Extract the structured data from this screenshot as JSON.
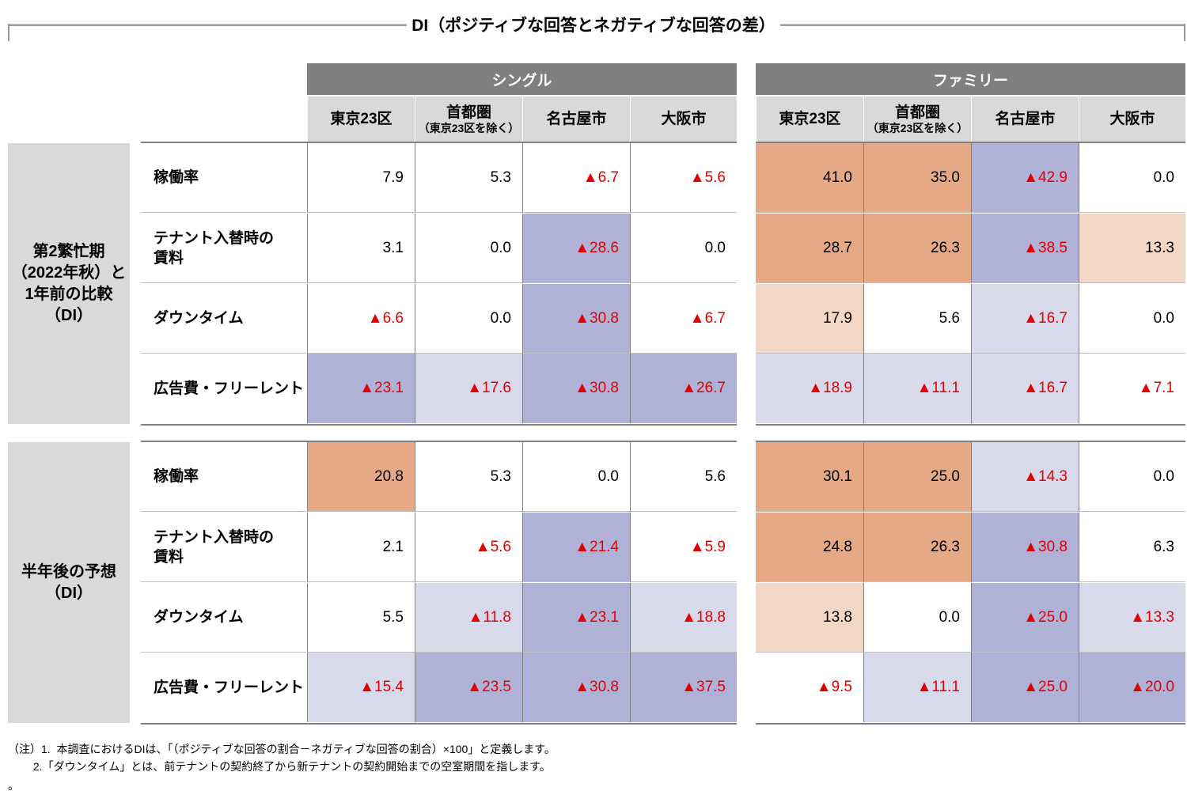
{
  "title": "DI（ポジティブな回答とネガティブな回答の差）",
  "groups": [
    {
      "label": "シングル"
    },
    {
      "label": "ファミリー"
    }
  ],
  "columns": [
    {
      "main": "東京23区",
      "sub": ""
    },
    {
      "main": "首都圏",
      "sub": "（東京23区を除く）"
    },
    {
      "main": "名古屋市",
      "sub": ""
    },
    {
      "main": "大阪市",
      "sub": ""
    }
  ],
  "sections": [
    {
      "label": "第2繁忙期\n（2022年秋）と\n1年前の比較\n（DI）"
    },
    {
      "label": "半年後の予想\n（DI）"
    }
  ],
  "row_labels": [
    "稼働率",
    "テナント入替時の\n賃料",
    "ダウンタイム",
    "広告費・フリーレント"
  ],
  "neg_marker": "▲",
  "colors": {
    "header_gray": "#7f7f7f",
    "strong_positive": "#e5a985",
    "mild_positive": "#f2d6c6",
    "strong_negative": "#afb1d6",
    "mild_negative": "#d9d9ec",
    "negative_text": "#e00000"
  },
  "chart_data": {
    "type": "table",
    "title": "DI（ポジティブな回答とネガティブな回答の差）",
    "groups": [
      "シングル",
      "ファミリー"
    ],
    "columns": [
      "東京23区",
      "首都圏（東京23区を除く）",
      "名古屋市",
      "大阪市"
    ],
    "rows": [
      "稼働率",
      "テナント入替時の賃料",
      "ダウンタイム",
      "広告費・フリーレント"
    ],
    "sections": [
      {
        "name": "第2繁忙期（2022年秋）と1年前の比較（DI）",
        "シングル": [
          [
            {
              "v": "7.9",
              "neg": false,
              "s": 0
            },
            {
              "v": "5.3",
              "neg": false,
              "s": 0
            },
            {
              "v": "6.7",
              "neg": true,
              "s": 0
            },
            {
              "v": "5.6",
              "neg": true,
              "s": 0
            }
          ],
          [
            {
              "v": "3.1",
              "neg": false,
              "s": 0
            },
            {
              "v": "0.0",
              "neg": false,
              "s": 0
            },
            {
              "v": "28.6",
              "neg": true,
              "s": 3
            },
            {
              "v": "0.0",
              "neg": false,
              "s": 0
            }
          ],
          [
            {
              "v": "6.6",
              "neg": true,
              "s": 0
            },
            {
              "v": "0.0",
              "neg": false,
              "s": 0
            },
            {
              "v": "30.8",
              "neg": true,
              "s": 3
            },
            {
              "v": "6.7",
              "neg": true,
              "s": 0
            }
          ],
          [
            {
              "v": "23.1",
              "neg": true,
              "s": 3
            },
            {
              "v": "17.6",
              "neg": true,
              "s": 4
            },
            {
              "v": "30.8",
              "neg": true,
              "s": 3
            },
            {
              "v": "26.7",
              "neg": true,
              "s": 3
            }
          ]
        ],
        "ファミリー": [
          [
            {
              "v": "41.0",
              "neg": false,
              "s": 1
            },
            {
              "v": "35.0",
              "neg": false,
              "s": 1
            },
            {
              "v": "42.9",
              "neg": true,
              "s": 3
            },
            {
              "v": "0.0",
              "neg": false,
              "s": 0
            }
          ],
          [
            {
              "v": "28.7",
              "neg": false,
              "s": 1
            },
            {
              "v": "26.3",
              "neg": false,
              "s": 1
            },
            {
              "v": "38.5",
              "neg": true,
              "s": 3
            },
            {
              "v": "13.3",
              "neg": false,
              "s": 2
            }
          ],
          [
            {
              "v": "17.9",
              "neg": false,
              "s": 2
            },
            {
              "v": "5.6",
              "neg": false,
              "s": 0
            },
            {
              "v": "16.7",
              "neg": true,
              "s": 4
            },
            {
              "v": "0.0",
              "neg": false,
              "s": 0
            }
          ],
          [
            {
              "v": "18.9",
              "neg": true,
              "s": 4
            },
            {
              "v": "11.1",
              "neg": true,
              "s": 4
            },
            {
              "v": "16.7",
              "neg": true,
              "s": 4
            },
            {
              "v": "7.1",
              "neg": true,
              "s": 0
            }
          ]
        ]
      },
      {
        "name": "半年後の予想（DI）",
        "シングル": [
          [
            {
              "v": "20.8",
              "neg": false,
              "s": 1
            },
            {
              "v": "5.3",
              "neg": false,
              "s": 0
            },
            {
              "v": "0.0",
              "neg": false,
              "s": 0
            },
            {
              "v": "5.6",
              "neg": false,
              "s": 0
            }
          ],
          [
            {
              "v": "2.1",
              "neg": false,
              "s": 0
            },
            {
              "v": "5.6",
              "neg": true,
              "s": 0
            },
            {
              "v": "21.4",
              "neg": true,
              "s": 3
            },
            {
              "v": "5.9",
              "neg": true,
              "s": 0
            }
          ],
          [
            {
              "v": "5.5",
              "neg": false,
              "s": 0
            },
            {
              "v": "11.8",
              "neg": true,
              "s": 4
            },
            {
              "v": "23.1",
              "neg": true,
              "s": 3
            },
            {
              "v": "18.8",
              "neg": true,
              "s": 4
            }
          ],
          [
            {
              "v": "15.4",
              "neg": true,
              "s": 4
            },
            {
              "v": "23.5",
              "neg": true,
              "s": 3
            },
            {
              "v": "30.8",
              "neg": true,
              "s": 3
            },
            {
              "v": "37.5",
              "neg": true,
              "s": 3
            }
          ]
        ],
        "ファミリー": [
          [
            {
              "v": "30.1",
              "neg": false,
              "s": 1
            },
            {
              "v": "25.0",
              "neg": false,
              "s": 1
            },
            {
              "v": "14.3",
              "neg": true,
              "s": 4
            },
            {
              "v": "0.0",
              "neg": false,
              "s": 0
            }
          ],
          [
            {
              "v": "24.8",
              "neg": false,
              "s": 1
            },
            {
              "v": "26.3",
              "neg": false,
              "s": 1
            },
            {
              "v": "30.8",
              "neg": true,
              "s": 3
            },
            {
              "v": "6.3",
              "neg": false,
              "s": 0
            }
          ],
          [
            {
              "v": "13.8",
              "neg": false,
              "s": 2
            },
            {
              "v": "0.0",
              "neg": false,
              "s": 0
            },
            {
              "v": "25.0",
              "neg": true,
              "s": 3
            },
            {
              "v": "13.3",
              "neg": true,
              "s": 4
            }
          ],
          [
            {
              "v": "9.5",
              "neg": true,
              "s": 0
            },
            {
              "v": "11.1",
              "neg": true,
              "s": 4
            },
            {
              "v": "25.0",
              "neg": true,
              "s": 3
            },
            {
              "v": "20.0",
              "neg": true,
              "s": 3
            }
          ]
        ]
      }
    ]
  },
  "notes": [
    "（注）1.  本調査におけるDIは、「（ポジティブな回答の割合－ネガティブな回答の割合）×100」と定義します。",
    "　　 2.「ダウンタイム」とは、前テナントの契約終了から新テナントの契約開始までの空室期間を指します。",
    "。"
  ]
}
